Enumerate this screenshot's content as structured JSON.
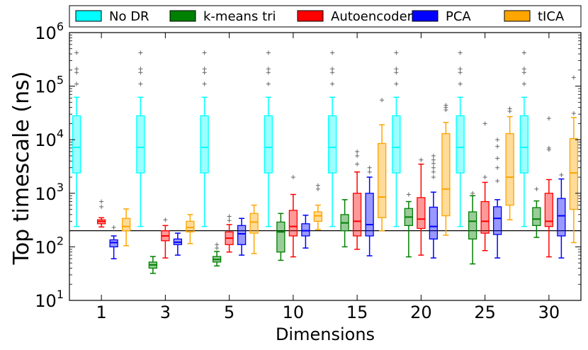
{
  "chart_data": {
    "type": "boxplot",
    "title": "",
    "xlabel": "Dimensions",
    "ylabel": "Top timescale (ns)",
    "yscale": "log",
    "ylim": [
      10,
      1000000
    ],
    "y_ticks": [
      {
        "base": "10",
        "exp": "1"
      },
      {
        "base": "10",
        "exp": "2"
      },
      {
        "base": "10",
        "exp": "3"
      },
      {
        "base": "10",
        "exp": "4"
      },
      {
        "base": "10",
        "exp": "5"
      },
      {
        "base": "10",
        "exp": "6"
      }
    ],
    "categories": [
      "1",
      "3",
      "5",
      "10",
      "15",
      "20",
      "25",
      "30"
    ],
    "reference_line": 200,
    "legend_position": "top",
    "series": [
      {
        "name": "No DR",
        "color": "#00ffff",
        "boxes": [
          {
            "whislo": 240,
            "q1": 2400,
            "med": 7200,
            "q3": 28000,
            "whishi": 62000,
            "fliers": [
              110000,
              180000,
              210000,
              420000
            ]
          },
          {
            "whislo": 240,
            "q1": 2400,
            "med": 7200,
            "q3": 28000,
            "whishi": 62000,
            "fliers": [
              110000,
              180000,
              210000,
              420000
            ]
          },
          {
            "whislo": 240,
            "q1": 2400,
            "med": 7200,
            "q3": 28000,
            "whishi": 62000,
            "fliers": [
              110000,
              180000,
              210000,
              420000
            ]
          },
          {
            "whislo": 240,
            "q1": 2400,
            "med": 7200,
            "q3": 28000,
            "whishi": 62000,
            "fliers": [
              110000,
              180000,
              210000,
              420000
            ]
          },
          {
            "whislo": 240,
            "q1": 2400,
            "med": 7200,
            "q3": 28000,
            "whishi": 62000,
            "fliers": [
              110000,
              180000,
              210000,
              420000
            ]
          },
          {
            "whislo": 240,
            "q1": 2400,
            "med": 7200,
            "q3": 28000,
            "whishi": 62000,
            "fliers": [
              110000,
              180000,
              210000,
              420000
            ]
          },
          {
            "whislo": 240,
            "q1": 2400,
            "med": 7200,
            "q3": 28000,
            "whishi": 62000,
            "fliers": [
              110000,
              180000,
              210000,
              420000
            ]
          },
          {
            "whislo": 240,
            "q1": 2400,
            "med": 7200,
            "q3": 28000,
            "whishi": 62000,
            "fliers": [
              110000,
              180000,
              210000,
              420000
            ]
          }
        ]
      },
      {
        "name": "k-means tri",
        "color": "#008000",
        "boxes": [
          null,
          {
            "whislo": 32,
            "q1": 40,
            "med": 46,
            "q3": 52,
            "whishi": 66,
            "fliers": []
          },
          {
            "whislo": 44,
            "q1": 52,
            "med": 58,
            "q3": 66,
            "whishi": 82,
            "fliers": [
              95,
              110
            ]
          },
          {
            "whislo": 56,
            "q1": 80,
            "med": 190,
            "q3": 290,
            "whishi": 420,
            "fliers": []
          },
          {
            "whislo": 100,
            "q1": 200,
            "med": 280,
            "q3": 400,
            "whishi": 760,
            "fliers": []
          },
          {
            "whislo": 65,
            "q1": 250,
            "med": 360,
            "q3": 520,
            "whishi": 700,
            "fliers": [
              950
            ]
          },
          {
            "whislo": 48,
            "q1": 140,
            "med": 300,
            "q3": 450,
            "whishi": 900,
            "fliers": [
              1000
            ]
          },
          {
            "whislo": 150,
            "q1": 250,
            "med": 330,
            "q3": 540,
            "whishi": 720,
            "fliers": [
              1200
            ]
          }
        ]
      },
      {
        "name": "Autoencoder",
        "color": "#ff0000",
        "boxes": [
          {
            "whislo": 235,
            "q1": 270,
            "med": 298,
            "q3": 320,
            "whishi": 350,
            "fliers": [
              560,
              700
            ]
          },
          {
            "whislo": 62,
            "q1": 130,
            "med": 160,
            "q3": 200,
            "whishi": 250,
            "fliers": [
              320
            ]
          },
          {
            "whislo": 80,
            "q1": 110,
            "med": 145,
            "q3": 190,
            "whishi": 260,
            "fliers": [
              310,
              370
            ]
          },
          {
            "whislo": 65,
            "q1": 160,
            "med": 240,
            "q3": 480,
            "whishi": 950,
            "fliers": [
              2000
            ]
          },
          {
            "whislo": 90,
            "q1": 160,
            "med": 300,
            "q3": 1000,
            "whishi": 2500,
            "fliers": [
              3500,
              5000,
              6000
            ]
          },
          {
            "whislo": 70,
            "q1": 220,
            "med": 330,
            "q3": 830,
            "whishi": 3500,
            "fliers": [
              4200
            ]
          },
          {
            "whislo": 85,
            "q1": 180,
            "med": 300,
            "q3": 700,
            "whishi": 1600,
            "fliers": [
              2000,
              20000
            ]
          },
          {
            "whislo": 65,
            "q1": 240,
            "med": 300,
            "q3": 1000,
            "whishi": 1800,
            "fliers": [
              6500,
              7000,
              25000
            ]
          }
        ]
      },
      {
        "name": "PCA",
        "color": "#0000ff",
        "boxes": [
          {
            "whislo": 60,
            "q1": 100,
            "med": 120,
            "q3": 135,
            "whishi": 160,
            "fliers": [
              230
            ]
          },
          {
            "whislo": 70,
            "q1": 110,
            "med": 122,
            "q3": 140,
            "whishi": 180,
            "fliers": []
          },
          {
            "whislo": 70,
            "q1": 110,
            "med": 175,
            "q3": 250,
            "whishi": 340,
            "fliers": []
          },
          {
            "whislo": 95,
            "q1": 160,
            "med": 200,
            "q3": 270,
            "whishi": 390,
            "fliers": []
          },
          {
            "whislo": 68,
            "q1": 160,
            "med": 260,
            "q3": 1000,
            "whishi": 2000,
            "fliers": [
              2500,
              3000
            ]
          },
          {
            "whislo": 62,
            "q1": 140,
            "med": 240,
            "q3": 550,
            "whishi": 1050,
            "fliers": [
              2000,
              2500,
              3000,
              3600,
              4200,
              5000
            ]
          },
          {
            "whislo": 62,
            "q1": 170,
            "med": 340,
            "q3": 560,
            "whishi": 760,
            "fliers": [
              1700,
              3000,
              4500,
              7500,
              10000
            ]
          },
          {
            "whislo": 62,
            "q1": 160,
            "med": 380,
            "q3": 800,
            "whishi": 1850,
            "fliers": [
              2200
            ]
          }
        ]
      },
      {
        "name": "tICA",
        "color": "#ffa500",
        "boxes": [
          {
            "whislo": 105,
            "q1": 200,
            "med": 240,
            "q3": 340,
            "whishi": 510,
            "fliers": []
          },
          {
            "whislo": 115,
            "q1": 190,
            "med": 230,
            "q3": 300,
            "whishi": 400,
            "fliers": []
          },
          {
            "whislo": 75,
            "q1": 180,
            "med": 290,
            "q3": 420,
            "whishi": 600,
            "fliers": []
          },
          {
            "whislo": 210,
            "q1": 300,
            "med": 380,
            "q3": 450,
            "whishi": 600,
            "fliers": [
              1200,
              1400
            ]
          },
          {
            "whislo": 200,
            "q1": 350,
            "med": 850,
            "q3": 8500,
            "whishi": 19000,
            "fliers": [
              55000
            ]
          },
          {
            "whislo": 165,
            "q1": 380,
            "med": 1200,
            "q3": 13000,
            "whishi": 21000,
            "fliers": [
              36000,
              40000,
              44000
            ]
          },
          {
            "whislo": 320,
            "q1": 600,
            "med": 2000,
            "q3": 13000,
            "whishi": 27000,
            "fliers": [
              34000,
              38000
            ]
          },
          {
            "whislo": 120,
            "q1": 500,
            "med": 2400,
            "q3": 10500,
            "whishi": 26000,
            "fliers": [
              31000,
              145000
            ]
          }
        ]
      }
    ]
  }
}
